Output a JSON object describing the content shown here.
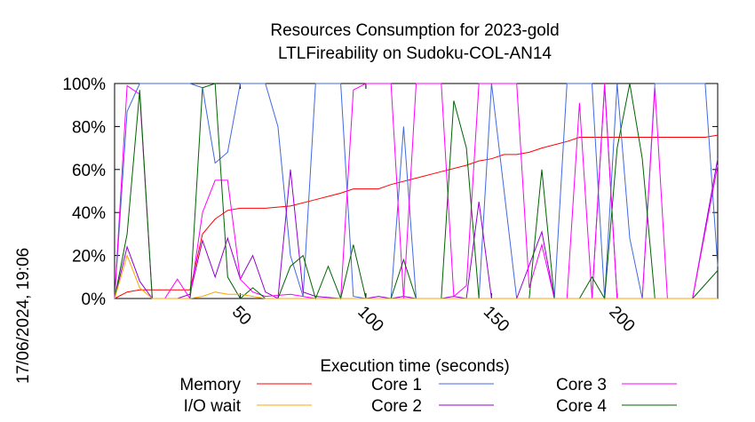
{
  "chart_data": {
    "type": "line",
    "title": [
      "Resources Consumption for 2023-gold",
      "LTLFireability on Sudoku-COL-AN14"
    ],
    "xlabel": "Execution time (seconds)",
    "ylabel": "",
    "side_label": "17/06/2024, 19:06",
    "xlim": [
      0,
      240
    ],
    "ylim": [
      0,
      100
    ],
    "x_ticks": [
      50,
      100,
      150,
      200
    ],
    "y_ticks": [
      {
        "value": 0,
        "label": "0%"
      },
      {
        "value": 20,
        "label": "20%"
      },
      {
        "value": 40,
        "label": "40%"
      },
      {
        "value": 60,
        "label": "60%"
      },
      {
        "value": 80,
        "label": "80%"
      },
      {
        "value": 100,
        "label": "100%"
      }
    ],
    "grid": false,
    "legend_placement": "bottom",
    "series": [
      {
        "name": "Memory",
        "color": "#ff0000",
        "points": [
          [
            0,
            0
          ],
          [
            5,
            3
          ],
          [
            10,
            4
          ],
          [
            20,
            4
          ],
          [
            30,
            4
          ],
          [
            35,
            30
          ],
          [
            40,
            37
          ],
          [
            45,
            41
          ],
          [
            50,
            42
          ],
          [
            60,
            42
          ],
          [
            70,
            43
          ],
          [
            80,
            46
          ],
          [
            90,
            49
          ],
          [
            95,
            51
          ],
          [
            100,
            51
          ],
          [
            105,
            51
          ],
          [
            110,
            53
          ],
          [
            120,
            56
          ],
          [
            130,
            59
          ],
          [
            140,
            62
          ],
          [
            145,
            64
          ],
          [
            150,
            65
          ],
          [
            155,
            67
          ],
          [
            160,
            67
          ],
          [
            165,
            68
          ],
          [
            170,
            70
          ],
          [
            180,
            73
          ],
          [
            185,
            75
          ],
          [
            195,
            75
          ],
          [
            205,
            75
          ],
          [
            215,
            75
          ],
          [
            225,
            75
          ],
          [
            235,
            75
          ],
          [
            240,
            76
          ]
        ]
      },
      {
        "name": "Core 1",
        "color": "#4169e1",
        "points": [
          [
            0,
            0
          ],
          [
            5,
            87
          ],
          [
            10,
            100
          ],
          [
            20,
            100
          ],
          [
            30,
            100
          ],
          [
            35,
            98
          ],
          [
            40,
            63
          ],
          [
            45,
            68
          ],
          [
            50,
            100
          ],
          [
            60,
            100
          ],
          [
            65,
            80
          ],
          [
            70,
            20
          ],
          [
            75,
            1
          ],
          [
            80,
            100
          ],
          [
            90,
            100
          ],
          [
            95,
            1
          ],
          [
            100,
            0
          ],
          [
            110,
            0
          ],
          [
            115,
            80
          ],
          [
            120,
            0
          ],
          [
            130,
            0
          ],
          [
            140,
            0
          ],
          [
            145,
            0
          ],
          [
            150,
            100
          ],
          [
            160,
            0
          ],
          [
            170,
            0
          ],
          [
            175,
            0
          ],
          [
            180,
            100
          ],
          [
            190,
            100
          ],
          [
            195,
            0
          ],
          [
            200,
            100
          ],
          [
            205,
            28
          ],
          [
            210,
            0
          ],
          [
            215,
            100
          ],
          [
            230,
            100
          ],
          [
            235,
            100
          ],
          [
            240,
            15
          ]
        ]
      },
      {
        "name": "Core 2",
        "color": "#9400d3",
        "points": [
          [
            0,
            0
          ],
          [
            5,
            24
          ],
          [
            10,
            8
          ],
          [
            15,
            0
          ],
          [
            20,
            0
          ],
          [
            25,
            0
          ],
          [
            30,
            2
          ],
          [
            35,
            27
          ],
          [
            40,
            10
          ],
          [
            45,
            28
          ],
          [
            50,
            9
          ],
          [
            55,
            20
          ],
          [
            60,
            3
          ],
          [
            65,
            0
          ],
          [
            70,
            60
          ],
          [
            75,
            3
          ],
          [
            80,
            1
          ],
          [
            90,
            0
          ],
          [
            95,
            0
          ],
          [
            100,
            0
          ],
          [
            105,
            1
          ],
          [
            110,
            0
          ],
          [
            115,
            1
          ],
          [
            120,
            0
          ],
          [
            130,
            0
          ],
          [
            135,
            1
          ],
          [
            140,
            0
          ],
          [
            145,
            45
          ],
          [
            150,
            0
          ],
          [
            160,
            0
          ],
          [
            170,
            31
          ],
          [
            175,
            0
          ],
          [
            180,
            0
          ],
          [
            185,
            0
          ],
          [
            190,
            0
          ],
          [
            195,
            99
          ],
          [
            200,
            0
          ],
          [
            210,
            0
          ],
          [
            220,
            0
          ],
          [
            230,
            0
          ],
          [
            240,
            65
          ]
        ]
      },
      {
        "name": "Core 3",
        "color": "#ff00ff",
        "points": [
          [
            0,
            0
          ],
          [
            5,
            99
          ],
          [
            10,
            95
          ],
          [
            15,
            0
          ],
          [
            20,
            0
          ],
          [
            25,
            9
          ],
          [
            30,
            0
          ],
          [
            35,
            40
          ],
          [
            40,
            55
          ],
          [
            45,
            55
          ],
          [
            50,
            9
          ],
          [
            55,
            3
          ],
          [
            60,
            1
          ],
          [
            70,
            2
          ],
          [
            80,
            0
          ],
          [
            90,
            0
          ],
          [
            95,
            97
          ],
          [
            100,
            100
          ],
          [
            110,
            100
          ],
          [
            115,
            0
          ],
          [
            120,
            100
          ],
          [
            130,
            100
          ],
          [
            135,
            1
          ],
          [
            140,
            6
          ],
          [
            145,
            100
          ],
          [
            155,
            100
          ],
          [
            160,
            100
          ],
          [
            165,
            5
          ],
          [
            170,
            25
          ],
          [
            175,
            0
          ],
          [
            180,
            0
          ],
          [
            185,
            91
          ],
          [
            190,
            0
          ],
          [
            195,
            100
          ],
          [
            200,
            0
          ],
          [
            210,
            0
          ],
          [
            215,
            98
          ],
          [
            220,
            0
          ],
          [
            230,
            0
          ],
          [
            240,
            62
          ]
        ]
      },
      {
        "name": "Core 4",
        "color": "#006400",
        "points": [
          [
            0,
            0
          ],
          [
            5,
            30
          ],
          [
            10,
            97
          ],
          [
            15,
            0
          ],
          [
            20,
            0
          ],
          [
            25,
            0
          ],
          [
            30,
            0
          ],
          [
            35,
            98
          ],
          [
            40,
            100
          ],
          [
            45,
            10
          ],
          [
            50,
            0
          ],
          [
            55,
            5
          ],
          [
            60,
            0
          ],
          [
            65,
            0
          ],
          [
            70,
            15
          ],
          [
            75,
            20
          ],
          [
            80,
            0
          ],
          [
            85,
            15
          ],
          [
            90,
            0
          ],
          [
            95,
            25
          ],
          [
            100,
            0
          ],
          [
            105,
            0
          ],
          [
            110,
            0
          ],
          [
            115,
            18
          ],
          [
            120,
            0
          ],
          [
            130,
            0
          ],
          [
            135,
            92
          ],
          [
            140,
            70
          ],
          [
            145,
            0
          ],
          [
            150,
            0
          ],
          [
            160,
            0
          ],
          [
            165,
            0
          ],
          [
            170,
            60
          ],
          [
            175,
            0
          ],
          [
            180,
            0
          ],
          [
            185,
            0
          ],
          [
            190,
            10
          ],
          [
            195,
            0
          ],
          [
            200,
            70
          ],
          [
            205,
            100
          ],
          [
            210,
            65
          ],
          [
            215,
            0
          ],
          [
            220,
            0
          ],
          [
            230,
            0
          ],
          [
            240,
            13
          ]
        ]
      },
      {
        "name": "I/O wait",
        "color": "#ffa500",
        "points": [
          [
            0,
            0
          ],
          [
            5,
            20
          ],
          [
            10,
            5
          ],
          [
            15,
            0
          ],
          [
            20,
            0
          ],
          [
            25,
            0
          ],
          [
            30,
            0
          ],
          [
            35,
            1
          ],
          [
            40,
            3
          ],
          [
            45,
            2
          ],
          [
            50,
            2
          ],
          [
            55,
            1
          ],
          [
            60,
            0
          ],
          [
            70,
            0
          ],
          [
            80,
            0
          ],
          [
            90,
            0
          ],
          [
            100,
            0
          ],
          [
            110,
            0
          ],
          [
            120,
            0
          ],
          [
            130,
            0
          ],
          [
            140,
            0
          ],
          [
            150,
            0
          ],
          [
            160,
            0
          ],
          [
            170,
            0
          ],
          [
            180,
            0
          ],
          [
            190,
            0
          ],
          [
            200,
            0
          ],
          [
            210,
            0
          ],
          [
            220,
            0
          ],
          [
            230,
            0
          ],
          [
            240,
            0
          ]
        ]
      }
    ],
    "legend_order": [
      "Memory",
      "I/O wait",
      "Core 1",
      "Core 2",
      "Core 3",
      "Core 4"
    ]
  }
}
